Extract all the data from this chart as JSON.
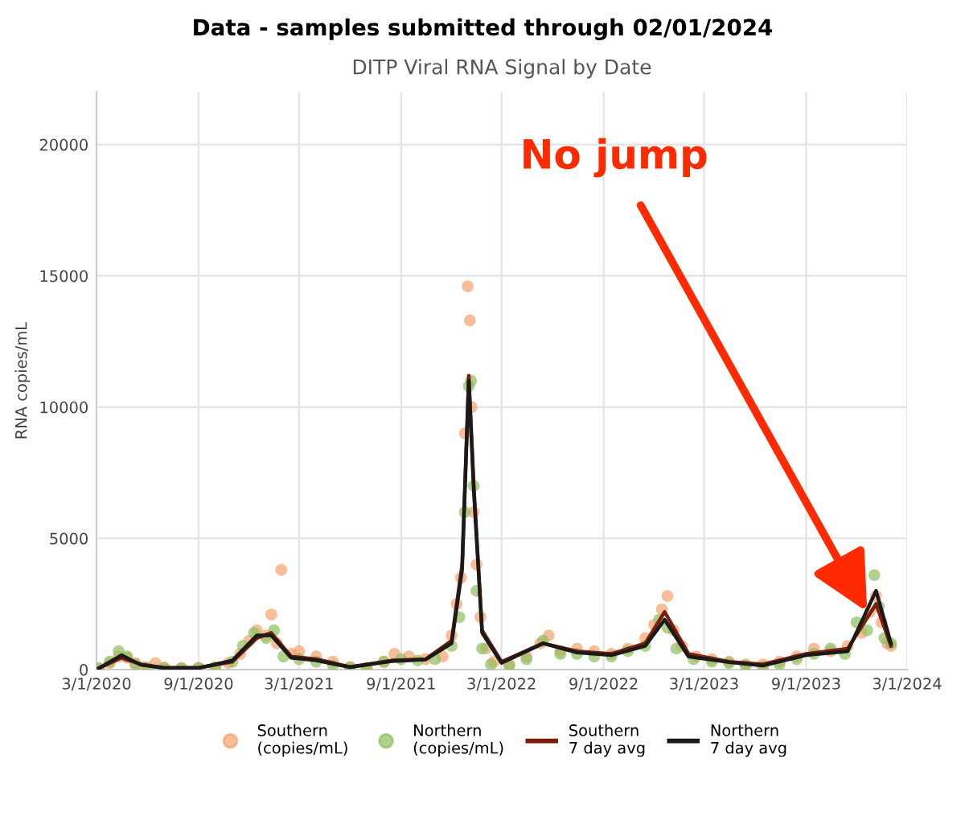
{
  "chart_data": {
    "type": "scatter",
    "title": "Data - samples submitted through 02/01/2024",
    "subtitle": "DITP Viral RNA Signal by Date",
    "ylabel": "RNA copies/mL",
    "xlim": [
      "2020-03-01",
      "2024-03-01"
    ],
    "ylim": [
      0,
      22000
    ],
    "yticks": [
      0,
      5000,
      10000,
      15000,
      20000
    ],
    "xticks": [
      {
        "value": "2020-03-01",
        "label": "3/1/2020"
      },
      {
        "value": "2020-09-01",
        "label": "9/1/2020"
      },
      {
        "value": "2021-03-01",
        "label": "3/1/2021"
      },
      {
        "value": "2021-09-01",
        "label": "9/1/2021"
      },
      {
        "value": "2022-03-01",
        "label": "3/1/2022"
      },
      {
        "value": "2022-09-01",
        "label": "9/1/2022"
      },
      {
        "value": "2023-03-01",
        "label": "3/1/2023"
      },
      {
        "value": "2023-09-01",
        "label": "9/1/2023"
      },
      {
        "value": "2024-03-01",
        "label": "3/1/2024"
      }
    ],
    "grid": true,
    "legend": "bottom",
    "line_style": "solid",
    "annotations": [
      {
        "text": "No jump",
        "x": "2023-12-20",
        "y": 2200
      }
    ],
    "series": [
      {
        "name": "Southern\n(copies/mL)",
        "marker": "circle",
        "color": "#f4a26e",
        "x": [
          "2020-03-05",
          "2020-03-25",
          "2020-04-10",
          "2020-04-25",
          "2020-05-10",
          "2020-05-25",
          "2020-06-15",
          "2020-07-01",
          "2020-08-01",
          "2020-09-01",
          "2020-10-01",
          "2020-10-25",
          "2020-11-15",
          "2020-12-01",
          "2020-12-15",
          "2021-01-01",
          "2021-01-10",
          "2021-01-20",
          "2021-01-28",
          "2021-02-15",
          "2021-03-01",
          "2021-04-01",
          "2021-05-01",
          "2021-06-01",
          "2021-07-01",
          "2021-08-01",
          "2021-08-20",
          "2021-09-15",
          "2021-10-15",
          "2021-11-15",
          "2021-12-01",
          "2021-12-10",
          "2021-12-18",
          "2021-12-25",
          "2021-12-30",
          "2022-01-03",
          "2022-01-06",
          "2022-01-10",
          "2022-01-15",
          "2022-01-22",
          "2022-02-01",
          "2022-02-15",
          "2022-03-15",
          "2022-04-15",
          "2022-05-10",
          "2022-05-25",
          "2022-06-15",
          "2022-07-15",
          "2022-08-15",
          "2022-09-15",
          "2022-10-15",
          "2022-11-15",
          "2022-12-01",
          "2022-12-15",
          "2022-12-25",
          "2023-01-05",
          "2023-01-20",
          "2023-02-15",
          "2023-03-15",
          "2023-04-15",
          "2023-05-15",
          "2023-06-15",
          "2023-07-15",
          "2023-08-15",
          "2023-09-15",
          "2023-10-15",
          "2023-11-15",
          "2023-12-10",
          "2023-12-25",
          "2024-01-05",
          "2024-01-15",
          "2024-01-25",
          "2024-02-01"
        ],
        "values": [
          50,
          250,
          500,
          450,
          250,
          100,
          250,
          80,
          60,
          70,
          100,
          250,
          600,
          1100,
          1500,
          1300,
          2100,
          1000,
          3800,
          600,
          700,
          500,
          300,
          100,
          60,
          300,
          600,
          500,
          400,
          500,
          1300,
          2500,
          3500,
          9000,
          14600,
          13300,
          10000,
          6000,
          4000,
          2000,
          800,
          300,
          200,
          500,
          1000,
          1300,
          700,
          800,
          700,
          600,
          800,
          1200,
          1700,
          2300,
          2800,
          1500,
          900,
          500,
          400,
          300,
          200,
          200,
          300,
          500,
          800,
          700,
          900,
          1400,
          2200,
          2800,
          1800,
          1000,
          900
        ]
      },
      {
        "name": "Northern\n(copies/mL)",
        "marker": "circle",
        "color": "#8dbf5e",
        "x": [
          "2020-03-05",
          "2020-03-25",
          "2020-04-10",
          "2020-04-25",
          "2020-05-10",
          "2020-06-01",
          "2020-07-01",
          "2020-08-01",
          "2020-09-01",
          "2020-10-01",
          "2020-11-01",
          "2020-11-20",
          "2020-12-10",
          "2021-01-01",
          "2021-01-15",
          "2021-02-01",
          "2021-03-01",
          "2021-04-01",
          "2021-05-01",
          "2021-06-01",
          "2021-07-01",
          "2021-08-01",
          "2021-09-01",
          "2021-10-01",
          "2021-11-01",
          "2021-12-01",
          "2021-12-15",
          "2021-12-25",
          "2022-01-01",
          "2022-01-05",
          "2022-01-10",
          "2022-01-15",
          "2022-01-25",
          "2022-02-10",
          "2022-03-15",
          "2022-04-15",
          "2022-05-15",
          "2022-06-15",
          "2022-07-15",
          "2022-08-15",
          "2022-09-15",
          "2022-10-15",
          "2022-11-15",
          "2022-12-10",
          "2022-12-25",
          "2023-01-10",
          "2023-02-10",
          "2023-03-15",
          "2023-04-15",
          "2023-05-15",
          "2023-06-15",
          "2023-07-15",
          "2023-08-15",
          "2023-09-15",
          "2023-10-15",
          "2023-11-10",
          "2023-12-01",
          "2023-12-20",
          "2024-01-02",
          "2024-01-10",
          "2024-01-20",
          "2024-02-01"
        ],
        "values": [
          50,
          300,
          700,
          500,
          200,
          80,
          60,
          50,
          60,
          80,
          300,
          900,
          1400,
          1200,
          1500,
          500,
          400,
          300,
          150,
          80,
          50,
          300,
          400,
          350,
          400,
          900,
          2000,
          6000,
          10800,
          11000,
          7000,
          3000,
          800,
          200,
          150,
          400,
          1100,
          600,
          600,
          500,
          500,
          700,
          900,
          1900,
          1600,
          800,
          400,
          300,
          250,
          150,
          100,
          200,
          400,
          600,
          800,
          600,
          1800,
          1500,
          3600,
          2400,
          1200,
          1000
        ]
      },
      {
        "name": "Southern\n7 day avg",
        "type": "line",
        "color": "#7b1e0c",
        "x": [
          "2020-03-05",
          "2020-04-15",
          "2020-05-20",
          "2020-07-01",
          "2020-09-01",
          "2020-11-01",
          "2020-12-15",
          "2021-01-10",
          "2021-02-15",
          "2021-04-01",
          "2021-06-01",
          "2021-08-15",
          "2021-10-15",
          "2021-12-01",
          "2021-12-20",
          "2022-01-01",
          "2022-01-10",
          "2022-01-25",
          "2022-03-01",
          "2022-05-15",
          "2022-07-15",
          "2022-09-15",
          "2022-11-15",
          "2022-12-20",
          "2023-02-01",
          "2023-04-15",
          "2023-06-15",
          "2023-09-01",
          "2023-11-15",
          "2024-01-05",
          "2024-02-01"
        ],
        "values": [
          50,
          450,
          200,
          70,
          70,
          300,
          1200,
          1400,
          500,
          400,
          100,
          350,
          400,
          1100,
          4000,
          11200,
          7000,
          1500,
          300,
          1000,
          700,
          600,
          1000,
          2200,
          600,
          300,
          200,
          600,
          800,
          2500,
          900
        ]
      },
      {
        "name": "Northern\n7 day avg",
        "type": "line",
        "color": "#1a1a1a",
        "x": [
          "2020-03-05",
          "2020-04-15",
          "2020-05-20",
          "2020-07-01",
          "2020-09-01",
          "2020-11-01",
          "2020-12-15",
          "2021-01-10",
          "2021-02-15",
          "2021-04-01",
          "2021-06-01",
          "2021-08-15",
          "2021-10-15",
          "2021-12-01",
          "2021-12-20",
          "2022-01-01",
          "2022-01-10",
          "2022-01-25",
          "2022-03-01",
          "2022-05-15",
          "2022-07-15",
          "2022-09-15",
          "2022-11-15",
          "2022-12-20",
          "2023-02-01",
          "2023-04-15",
          "2023-06-15",
          "2023-09-01",
          "2023-11-15",
          "2024-01-05",
          "2024-02-01"
        ],
        "values": [
          50,
          550,
          180,
          60,
          60,
          350,
          1300,
          1300,
          450,
          350,
          90,
          320,
          380,
          1000,
          3800,
          11000,
          6800,
          1400,
          250,
          1000,
          650,
          550,
          900,
          1900,
          500,
          280,
          150,
          550,
          700,
          3000,
          1000
        ]
      }
    ]
  }
}
